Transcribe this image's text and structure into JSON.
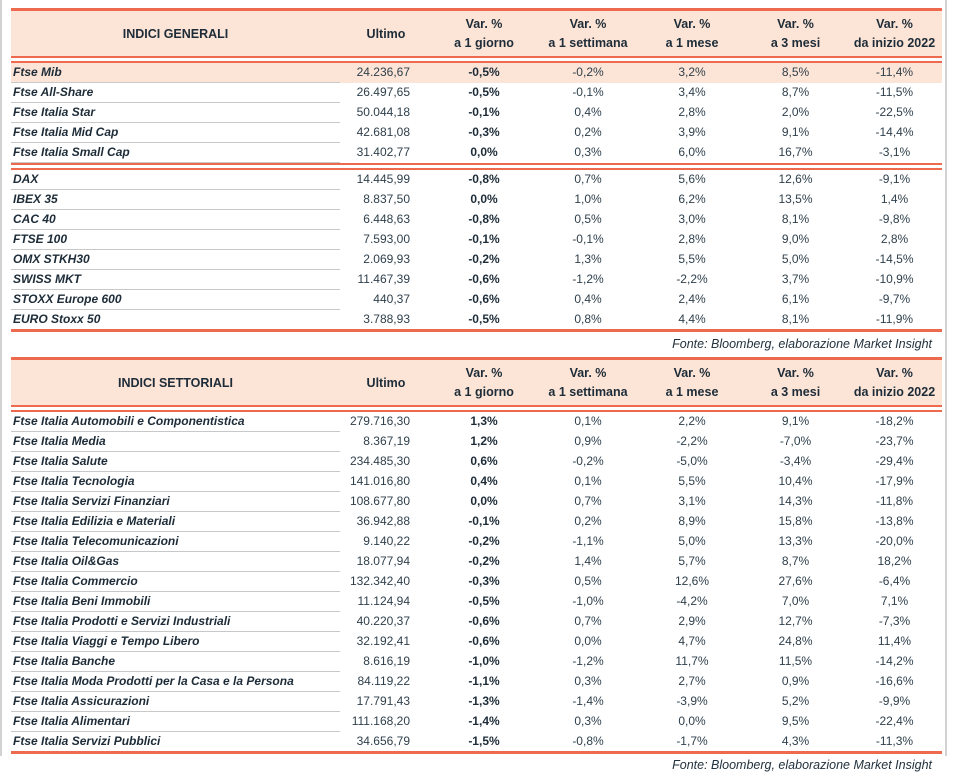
{
  "columns": {
    "ultimo": "Ultimo",
    "var_pct": "Var. %",
    "periods": [
      "a 1 giorno",
      "a 1 settimana",
      "a 1 mese",
      "a 3 mesi",
      "da inizio 2022"
    ]
  },
  "accent_colors": {
    "rule_red": "#ee6a4f",
    "header_peach": "#fce4d6",
    "row_line_gray": "#c8c8c8"
  },
  "tables": [
    {
      "title": "INDICI GENERALI",
      "fonte": "Fonte: Bloomberg, elaborazione Market Insight",
      "groups": [
        {
          "rows": [
            {
              "name": "Ftse Mib",
              "ultimo": "24.236,67",
              "vars": [
                "-0,5%",
                "-0,2%",
                "3,2%",
                "8,5%",
                "-11,4%"
              ],
              "highlight": true
            },
            {
              "name": "Ftse All-Share",
              "ultimo": "26.497,65",
              "vars": [
                "-0,5%",
                "-0,1%",
                "3,4%",
                "8,7%",
                "-11,5%"
              ]
            },
            {
              "name": "Ftse Italia Star",
              "ultimo": "50.044,18",
              "vars": [
                "-0,1%",
                "0,4%",
                "2,8%",
                "2,0%",
                "-22,5%"
              ]
            },
            {
              "name": "Ftse Italia Mid Cap",
              "ultimo": "42.681,08",
              "vars": [
                "-0,3%",
                "0,2%",
                "3,9%",
                "9,1%",
                "-14,4%"
              ]
            },
            {
              "name": "Ftse Italia Small Cap",
              "ultimo": "31.402,77",
              "vars": [
                "0,0%",
                "0,3%",
                "6,0%",
                "16,7%",
                "-3,1%"
              ]
            }
          ]
        },
        {
          "rows": [
            {
              "name": "DAX",
              "ultimo": "14.445,99",
              "vars": [
                "-0,8%",
                "0,7%",
                "5,6%",
                "12,6%",
                "-9,1%"
              ]
            },
            {
              "name": "IBEX 35",
              "ultimo": "8.837,50",
              "vars": [
                "0,0%",
                "1,0%",
                "6,2%",
                "13,5%",
                "1,4%"
              ]
            },
            {
              "name": "CAC 40",
              "ultimo": "6.448,63",
              "vars": [
                "-0,8%",
                "0,5%",
                "3,0%",
                "8,1%",
                "-9,8%"
              ]
            },
            {
              "name": "FTSE 100",
              "ultimo": "7.593,00",
              "vars": [
                "-0,1%",
                "-0,1%",
                "2,8%",
                "9,0%",
                "2,8%"
              ]
            },
            {
              "name": "OMX STKH30",
              "ultimo": "2.069,93",
              "vars": [
                "-0,2%",
                "1,3%",
                "5,5%",
                "5,0%",
                "-14,5%"
              ]
            },
            {
              "name": "SWISS MKT",
              "ultimo": "11.467,39",
              "vars": [
                "-0,6%",
                "-1,2%",
                "-2,2%",
                "3,7%",
                "-10,9%"
              ]
            },
            {
              "name": "STOXX Europe 600",
              "ultimo": "440,37",
              "vars": [
                "-0,6%",
                "0,4%",
                "2,4%",
                "6,1%",
                "-9,7%"
              ]
            },
            {
              "name": "EURO Stoxx 50",
              "ultimo": "3.788,93",
              "vars": [
                "-0,5%",
                "0,8%",
                "4,4%",
                "8,1%",
                "-11,9%"
              ]
            }
          ]
        }
      ]
    },
    {
      "title": "INDICI SETTORIALI",
      "fonte": "Fonte: Bloomberg, elaborazione Market Insight",
      "groups": [
        {
          "rows": [
            {
              "name": "Ftse Italia Automobili e Componentistica",
              "ultimo": "279.716,30",
              "vars": [
                "1,3%",
                "0,1%",
                "2,2%",
                "9,1%",
                "-18,2%"
              ]
            },
            {
              "name": "Ftse Italia Media",
              "ultimo": "8.367,19",
              "vars": [
                "1,2%",
                "0,9%",
                "-2,2%",
                "-7,0%",
                "-23,7%"
              ]
            },
            {
              "name": "Ftse Italia Salute",
              "ultimo": "234.485,30",
              "vars": [
                "0,6%",
                "-0,2%",
                "-5,0%",
                "-3,4%",
                "-29,4%"
              ]
            },
            {
              "name": "Ftse Italia Tecnologia",
              "ultimo": "141.016,80",
              "vars": [
                "0,4%",
                "0,1%",
                "5,5%",
                "10,4%",
                "-17,9%"
              ]
            },
            {
              "name": "Ftse Italia Servizi Finanziari",
              "ultimo": "108.677,80",
              "vars": [
                "0,0%",
                "0,7%",
                "3,1%",
                "14,3%",
                "-11,8%"
              ]
            },
            {
              "name": "Ftse Italia Edilizia e Materiali",
              "ultimo": "36.942,88",
              "vars": [
                "-0,1%",
                "0,2%",
                "8,9%",
                "15,8%",
                "-13,8%"
              ]
            },
            {
              "name": "Ftse Italia Telecomunicazioni",
              "ultimo": "9.140,22",
              "vars": [
                "-0,2%",
                "-1,1%",
                "5,0%",
                "13,3%",
                "-20,0%"
              ]
            },
            {
              "name": "Ftse Italia Oil&Gas",
              "ultimo": "18.077,94",
              "vars": [
                "-0,2%",
                "1,4%",
                "5,7%",
                "8,7%",
                "18,2%"
              ]
            },
            {
              "name": "Ftse Italia Commercio",
              "ultimo": "132.342,40",
              "vars": [
                "-0,3%",
                "0,5%",
                "12,6%",
                "27,6%",
                "-6,4%"
              ]
            },
            {
              "name": "Ftse Italia Beni Immobili",
              "ultimo": "11.124,94",
              "vars": [
                "-0,5%",
                "-1,0%",
                "-4,2%",
                "7,0%",
                "7,1%"
              ]
            },
            {
              "name": "Ftse Italia Prodotti e Servizi Industriali",
              "ultimo": "40.220,37",
              "vars": [
                "-0,6%",
                "0,7%",
                "2,9%",
                "12,7%",
                "-7,3%"
              ]
            },
            {
              "name": "Ftse Italia Viaggi e Tempo Libero",
              "ultimo": "32.192,41",
              "vars": [
                "-0,6%",
                "0,0%",
                "4,7%",
                "24,8%",
                "11,4%"
              ]
            },
            {
              "name": "Ftse Italia Banche",
              "ultimo": "8.616,19",
              "vars": [
                "-1,0%",
                "-1,2%",
                "11,7%",
                "11,5%",
                "-14,2%"
              ]
            },
            {
              "name": "Ftse Italia Moda Prodotti per la Casa e la Persona",
              "ultimo": "84.119,22",
              "vars": [
                "-1,1%",
                "0,3%",
                "2,7%",
                "0,9%",
                "-16,6%"
              ]
            },
            {
              "name": "Ftse Italia Assicurazioni",
              "ultimo": "17.791,43",
              "vars": [
                "-1,3%",
                "-1,4%",
                "-3,9%",
                "5,2%",
                "-9,9%"
              ]
            },
            {
              "name": "Ftse Italia Alimentari",
              "ultimo": "111.168,20",
              "vars": [
                "-1,4%",
                "0,3%",
                "0,0%",
                "9,5%",
                "-22,4%"
              ]
            },
            {
              "name": "Ftse Italia Servizi Pubblici",
              "ultimo": "34.656,79",
              "vars": [
                "-1,5%",
                "-0,8%",
                "-1,7%",
                "4,3%",
                "-11,3%"
              ]
            }
          ]
        }
      ]
    }
  ]
}
